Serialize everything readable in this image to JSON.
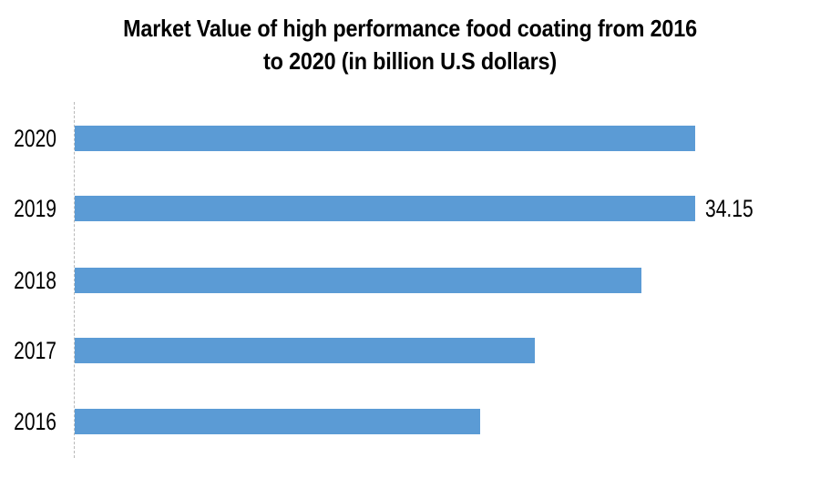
{
  "title": {
    "line1": "Market Value of high performance food coating from 2016",
    "line2": "to 2020 (in billion U.S dollars)"
  },
  "chart_data": {
    "type": "bar",
    "orientation": "horizontal",
    "title": "Market Value of high performance food coating from 2016 to 2020 (in billion U.S dollars)",
    "categories": [
      "2020",
      "2019",
      "2018",
      "2017",
      "2016"
    ],
    "values": [
      34.15,
      34.15,
      31.2,
      25.3,
      22.3
    ],
    "data_labels": [
      "",
      "34.15",
      "",
      "",
      ""
    ],
    "unit": "billion U.S dollars",
    "xlabel": "",
    "ylabel": "",
    "xlim": [
      0,
      39
    ],
    "grid": false,
    "legend": false,
    "bar_color": "#5B9BD5",
    "axis_line_color": "#b9b9b9",
    "text_color": "#000000"
  },
  "layout_note": "single horizontal bar chart on white background, y-axis dashed line only, no x-axis ticks"
}
